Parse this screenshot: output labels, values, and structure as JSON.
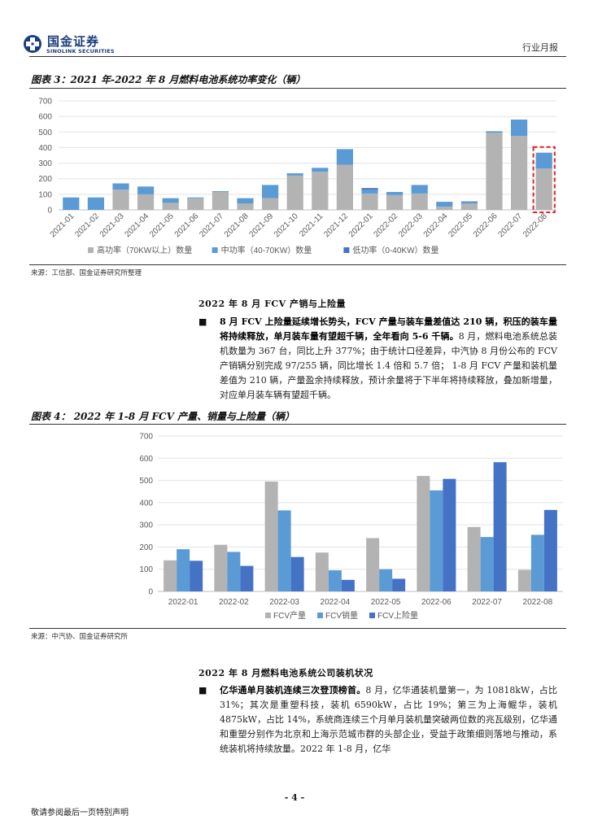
{
  "header": {
    "logo_cn": "国金证券",
    "logo_en": "SINOLINK SECURITIES",
    "report_type": "行业月报"
  },
  "figure3": {
    "title": "图表 3：2021 年-2022 年 8 月燃料电池系统功率变化（辆）",
    "source": "来源：工信部、国金证券研究所整理"
  },
  "section1": {
    "heading": "2022 年 8 月 FCV 产销与上险量",
    "bullet": "■",
    "bold": "8 月 FCV 上险量延续增长势头，FCV 产量与装车量差值达 210 辆，积压的装车量将持续释放，单月装车量有望超千辆，全年看向 5-6 千辆。",
    "text": "8 月，燃料电池系统总装机数量为 367 台，同比上升 377%；由于统计口径差异，中汽协 8 月份公布的 FCV 产销辆分别完成 97/255 辆，同比增长 1.4 倍和 5.7 倍； 1-8 月 FCV 产量和装机量差值为 210 辆，产量盈余持续释放，预计余量将于下半年将持续释放，叠加新增量，对应单月装车辆有望超千辆。"
  },
  "figure4": {
    "title": "图表 4：  2022 年 1-8 月 FCV 产量、销量与上险量（辆）",
    "source": "来源：中汽协、国金证券研究所"
  },
  "section2": {
    "heading": "2022 年 8 月燃料电池系统公司装机状况",
    "bullet": "■",
    "bold": "亿华通单月装机连续三次登顶榜首。",
    "text": "8 月，亿华通装机量第一，为 10818kW，占比 31%；其次是重塑科技，装机 6590kW，占比 19%；第三为上海鲲华，装机 4875kW，占比 14%，系统商连续三个月单月装机量突破两位数的兆瓦级别，亿华通和重塑分别作为北京和上海示范城市群的头部企业，受益于政策细则落地与推动，系统装机将持续放量。2022 年 1-8 月，亿华"
  },
  "page_number": "- 4 -",
  "footer": "敬请参阅最后一页特别声明",
  "chart_data": [
    {
      "type": "bar",
      "stacked": true,
      "categories": [
        "2021-01",
        "2021-02",
        "2021-03",
        "2021-04",
        "2021-05",
        "2021-06",
        "2021-07",
        "2021-08",
        "2021-09",
        "2021-10",
        "2021-11",
        "2021-12",
        "2022-01",
        "2022-02",
        "2022-03",
        "2022-04",
        "2022-05",
        "2022-06",
        "2022-07",
        "2022-08"
      ],
      "series": [
        {
          "name": "高功率（70KW以上）数量",
          "color": "#b3b3b3",
          "values": [
            0,
            0,
            130,
            100,
            45,
            75,
            115,
            40,
            75,
            220,
            245,
            290,
            105,
            95,
            105,
            20,
            40,
            495,
            475,
            265
          ]
        },
        {
          "name": "中功率（40-70KW）数量",
          "color": "#5b9bd5",
          "values": [
            80,
            80,
            40,
            50,
            30,
            5,
            5,
            35,
            85,
            15,
            25,
            100,
            25,
            20,
            55,
            32,
            15,
            10,
            105,
            100
          ]
        },
        {
          "name": "低功率（0-40KW）数量",
          "color": "#4472c4",
          "values": [
            0,
            0,
            0,
            0,
            0,
            0,
            0,
            0,
            0,
            0,
            0,
            0,
            10,
            0,
            0,
            0,
            0,
            0,
            0,
            2
          ]
        }
      ],
      "ylim": [
        0,
        700
      ],
      "yticks": [
        0,
        100,
        200,
        300,
        400,
        500,
        600,
        700
      ],
      "grid": true,
      "legend": "bottom",
      "highlight": "2022-08"
    },
    {
      "type": "bar",
      "categories": [
        "2022-01",
        "2022-02",
        "2022-03",
        "2022-04",
        "2022-05",
        "2022-06",
        "2022-07",
        "2022-08"
      ],
      "series": [
        {
          "name": "FCV产量",
          "color": "#b3b3b3",
          "values": [
            140,
            210,
            495,
            175,
            240,
            520,
            290,
            97
          ]
        },
        {
          "name": "FCV销量",
          "color": "#5b9bd5",
          "values": [
            190,
            178,
            365,
            95,
            100,
            455,
            245,
            255
          ]
        },
        {
          "name": "FCV上险量",
          "color": "#4472c4",
          "values": [
            138,
            115,
            155,
            52,
            57,
            507,
            582,
            367
          ]
        }
      ],
      "ylim": [
        0,
        700
      ],
      "yticks": [
        0,
        100,
        200,
        300,
        400,
        500,
        600,
        700
      ],
      "grid": true,
      "legend": "bottom"
    }
  ]
}
